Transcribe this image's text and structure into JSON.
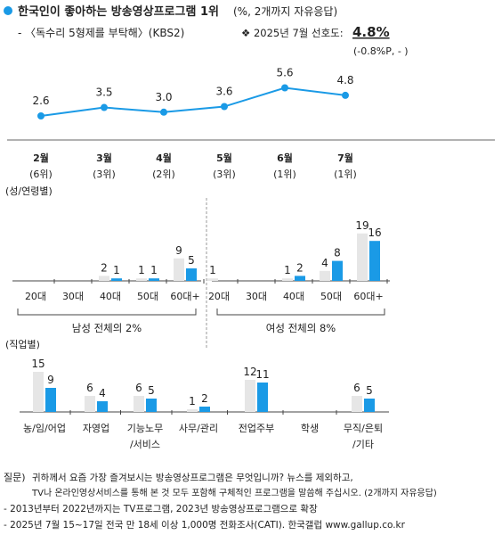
{
  "header": {
    "title": "한국인이 좋아하는 방송영상프로그램 1위",
    "title_note": "(%, 2개까지 자유응답)",
    "program": "- 〈독수리 5형제를 부탁해〉(KBS2)",
    "pref_label": "❖ 2025년 7월 선호도:",
    "pref_value": "4.8%",
    "pref_change": "(-0.8%P, - )"
  },
  "colors": {
    "blue": "#1a9ae6",
    "gray": "#e6e6e6",
    "line": "#1a9ae6",
    "bullet": "#1a9ae6",
    "accent_red": "#d9302c"
  },
  "chart_data": [
    {
      "type": "line",
      "x": [
        "2월",
        "3월",
        "4월",
        "5월",
        "6월",
        "7월"
      ],
      "ranks": [
        "(6위)",
        "(3위)",
        "(2위)",
        "(3위)",
        "(1위)",
        "(1위)"
      ],
      "values": [
        2.6,
        3.5,
        3.0,
        3.6,
        5.6,
        4.8
      ]
    },
    {
      "type": "bar",
      "section_label": "(성/연령별)",
      "groups": [
        {
          "label": "남성 전체의 2%",
          "categories": [
            "20대",
            "30대",
            "40대",
            "50대",
            "60대+"
          ],
          "series": [
            {
              "values": [
                null,
                null,
                2,
                1,
                9
              ]
            },
            {
              "values": [
                null,
                null,
                1,
                1,
                5
              ]
            }
          ]
        },
        {
          "label": "여성 전체의 8%",
          "categories": [
            "20대",
            "30대",
            "40대",
            "50대",
            "60대+"
          ],
          "series": [
            {
              "values": [
                1,
                null,
                1,
                4,
                19
              ]
            },
            {
              "values": [
                null,
                null,
                2,
                8,
                16
              ]
            }
          ]
        }
      ]
    },
    {
      "type": "bar",
      "section_label": "(직업별)",
      "categories": [
        "농/임/어업",
        "자영업",
        "기능노무/서비스",
        "사무/관리",
        "전업주부",
        "학생",
        "무직/은퇴/기타"
      ],
      "category_lines": [
        [
          "농/임/어업"
        ],
        [
          "자영업"
        ],
        [
          "기능노무",
          "/서비스"
        ],
        [
          "사무/관리"
        ],
        [
          "전업주부"
        ],
        [
          "학생"
        ],
        [
          "무직/은퇴",
          "/기타"
        ]
      ],
      "series": [
        {
          "values": [
            15,
            6,
            6,
            1,
            12,
            null,
            6
          ]
        },
        {
          "values": [
            9,
            4,
            5,
            2,
            11,
            null,
            5
          ]
        }
      ]
    }
  ],
  "footer": {
    "question_label": "질문)",
    "question_line1": "귀하께서 요즘 가장 즐겨보시는 방송영상프로그램은 무엇입니까? 뉴스를 제외하고,",
    "question_line2": "TV나 온라인영상서비스를 통해 본 것 모두 포함해 구체적인 프로그램을 말씀해 주십시오. (2개까지 자유응답)",
    "note1": "- 2013년부터 2022년까지는 TV프로그램, 2023년 방송영상프로그램으로 확장",
    "note2": "- 2025년 7월 15~17일 전국 만 18세 이상 1,000명 전화조사(CATI). 한국갤럽 www.gallup.co.kr"
  }
}
